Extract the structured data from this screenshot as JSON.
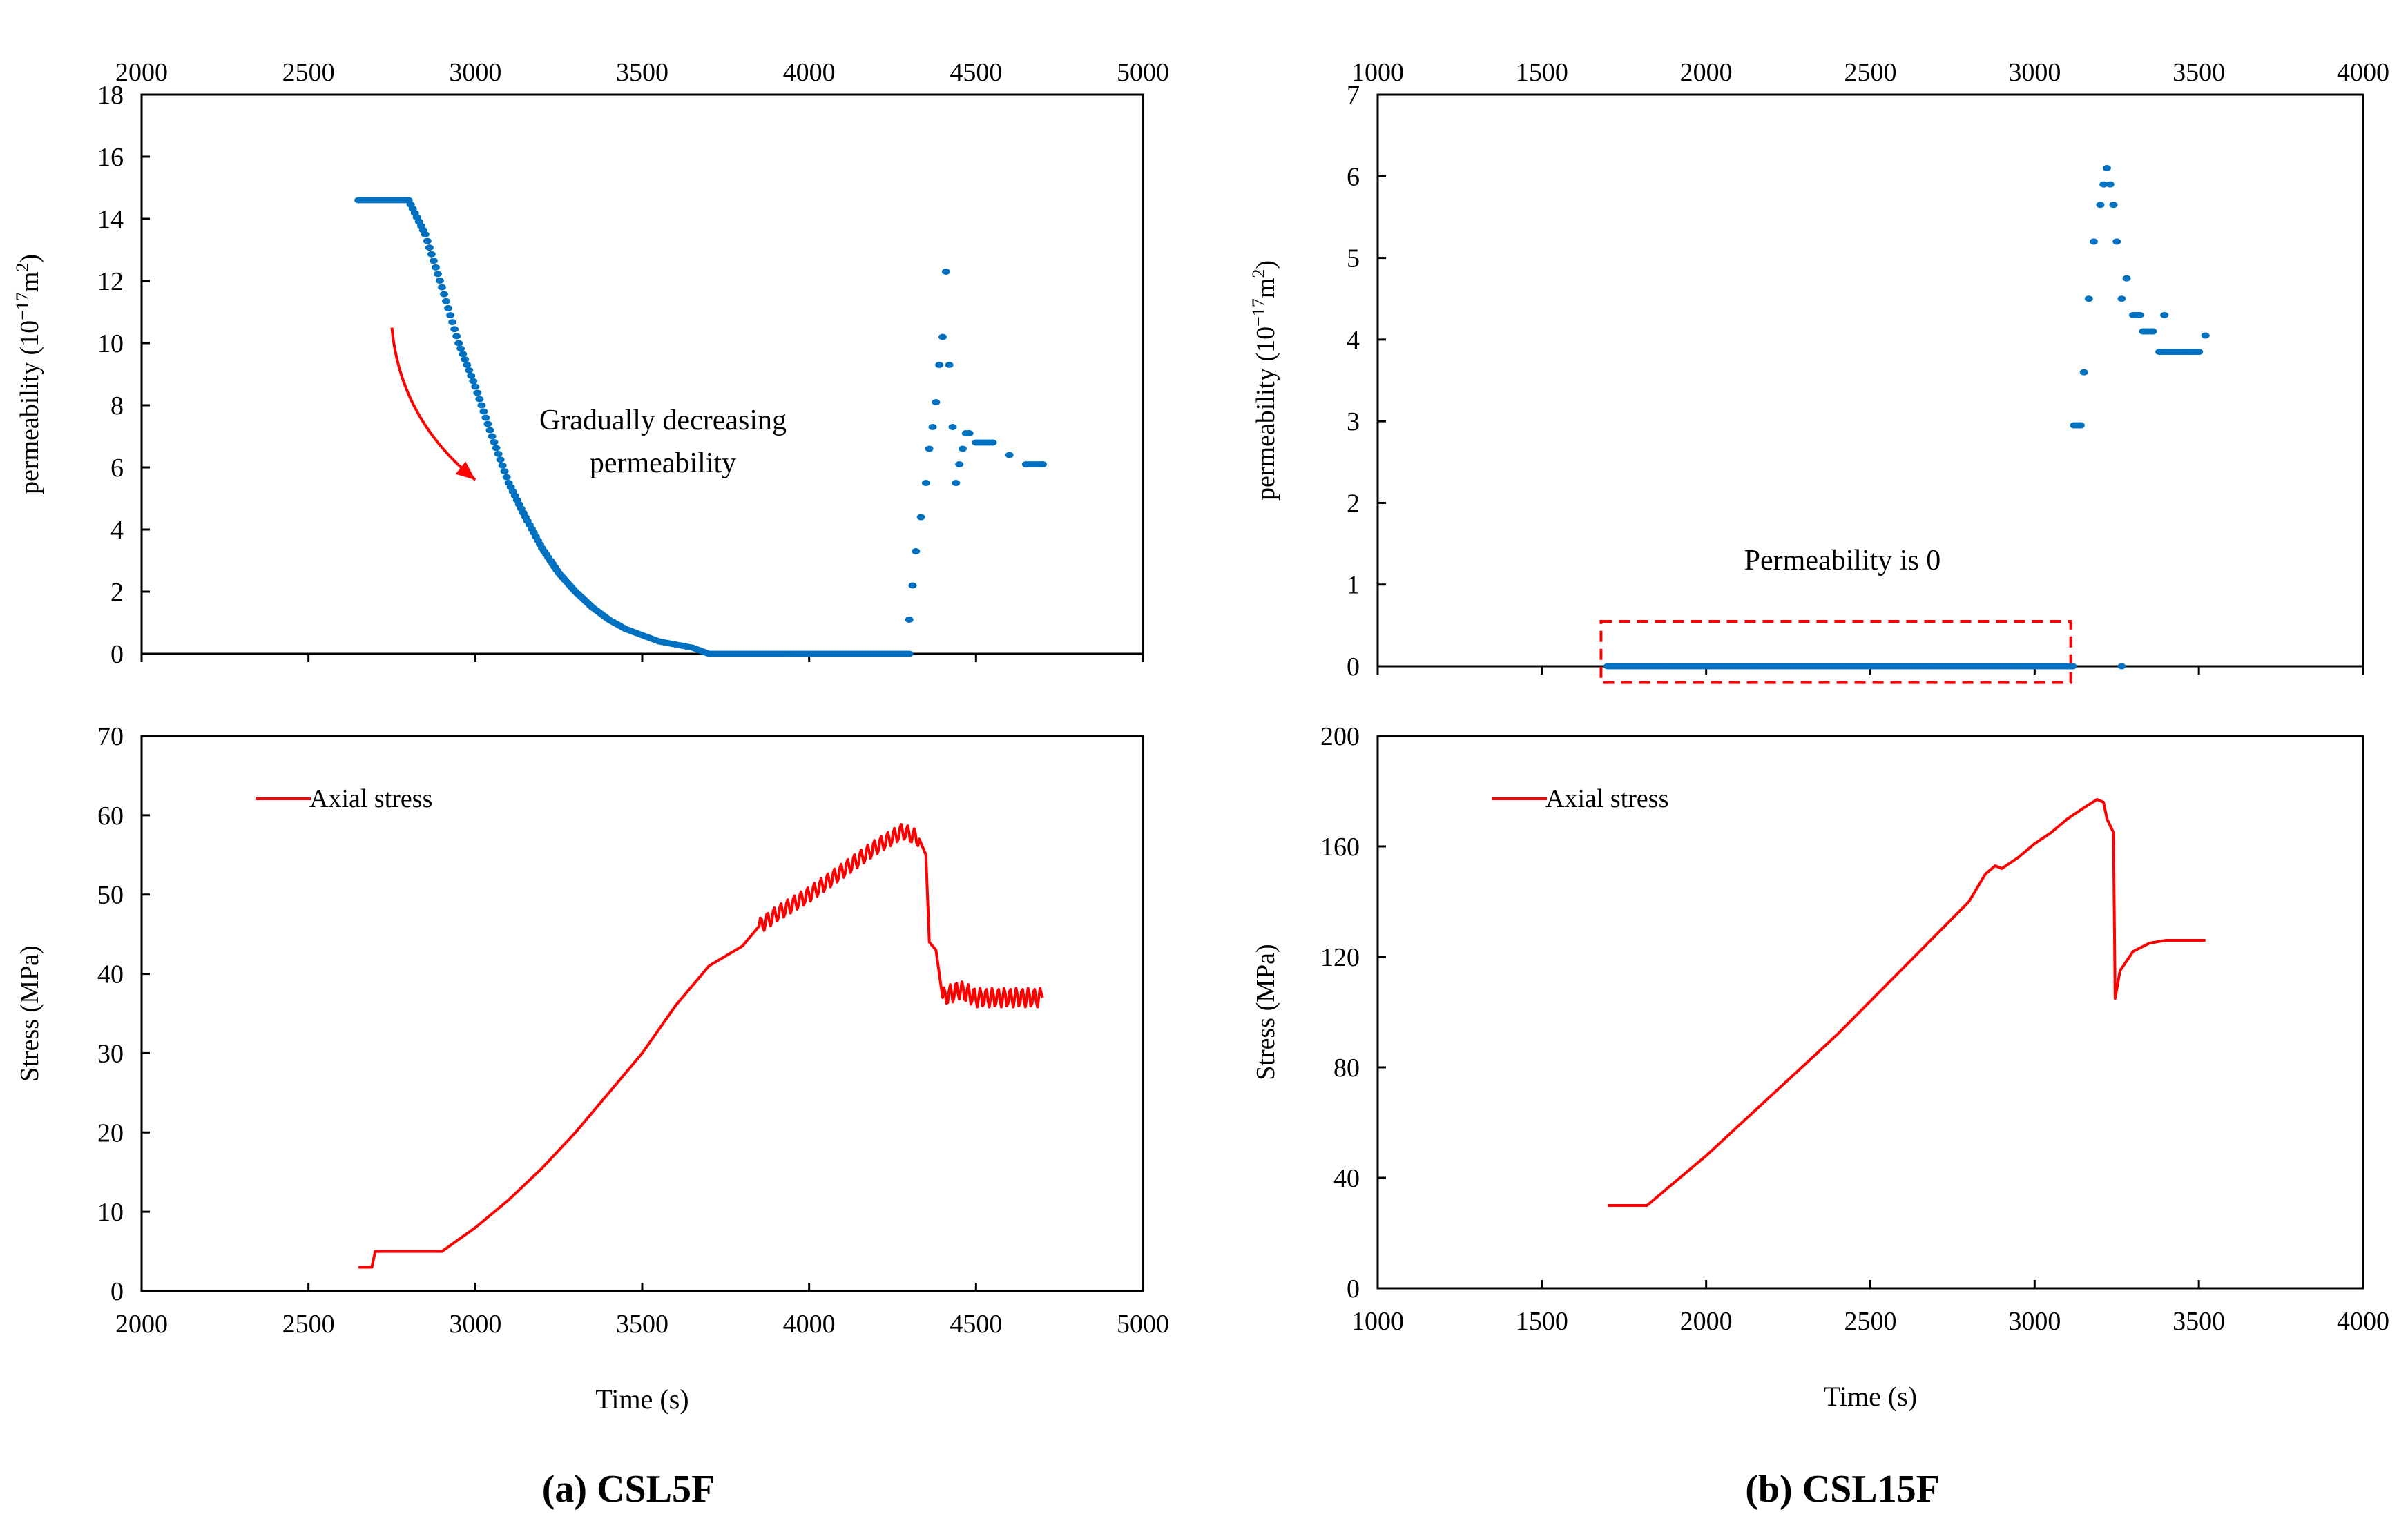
{
  "chart_data": [
    {
      "id": "a_perm",
      "type": "scatter",
      "panel": "(a) CSL5F",
      "ylabel_pre": "permeability (10",
      "ylabel_exp": "−17",
      "ylabel_post": "m",
      "ylabel_sq": "2",
      "ylabel_end": ")",
      "xlim": [
        2000,
        5000
      ],
      "ylim": [
        0,
        18
      ],
      "xticks": [
        "2000",
        "2500",
        "3000",
        "3500",
        "4000",
        "4500",
        "5000"
      ],
      "yticks": [
        "0",
        "2",
        "4",
        "6",
        "8",
        "10",
        "12",
        "14",
        "16",
        "18"
      ],
      "x_axis_position": "top",
      "annotation_lines": [
        "Gradually  decreasing",
        "permeability"
      ],
      "arrow": {
        "from": [
          2750,
          10.5
        ],
        "to": [
          3000,
          5.6
        ],
        "color": "#ff0000"
      },
      "color": "#0070c0",
      "segments": [
        {
          "kind": "plateau",
          "x0": 2650,
          "x1": 2800,
          "y": 14.6
        },
        {
          "kind": "decay",
          "points": [
            [
              2800,
              14.6
            ],
            [
              2850,
              13.5
            ],
            [
              2900,
              11.8
            ],
            [
              2950,
              10.0
            ],
            [
              3000,
              8.6
            ],
            [
              3050,
              7.0
            ],
            [
              3100,
              5.5
            ],
            [
              3150,
              4.4
            ],
            [
              3200,
              3.4
            ],
            [
              3250,
              2.6
            ],
            [
              3300,
              2.0
            ],
            [
              3350,
              1.5
            ],
            [
              3400,
              1.1
            ],
            [
              3450,
              0.8
            ],
            [
              3500,
              0.6
            ],
            [
              3550,
              0.4
            ],
            [
              3600,
              0.3
            ],
            [
              3650,
              0.2
            ],
            [
              3700,
              0.0
            ]
          ]
        },
        {
          "kind": "zero",
          "x0": 3700,
          "x1": 4300,
          "y": 0
        },
        {
          "kind": "peak",
          "points": [
            [
              4300,
              1.1
            ],
            [
              4310,
              2.2
            ],
            [
              4320,
              3.3
            ],
            [
              4335,
              4.4
            ],
            [
              4350,
              5.5
            ],
            [
              4360,
              6.6
            ],
            [
              4370,
              7.3
            ],
            [
              4380,
              8.1
            ],
            [
              4390,
              9.3
            ],
            [
              4400,
              10.2
            ],
            [
              4410,
              12.3
            ],
            [
              4420,
              9.3
            ],
            [
              4430,
              7.3
            ],
            [
              4440,
              5.5
            ],
            [
              4450,
              6.1
            ],
            [
              4460,
              6.6
            ],
            [
              4470,
              7.1
            ],
            [
              4480,
              7.1
            ],
            [
              4500,
              6.8
            ],
            [
              4550,
              6.8
            ],
            [
              4600,
              6.4
            ],
            [
              4650,
              6.1
            ],
            [
              4700,
              6.1
            ]
          ]
        }
      ]
    },
    {
      "id": "a_stress",
      "type": "line",
      "panel": "(a) CSL5F",
      "xlabel": "Time (s)",
      "ylabel": "Stress (MPa)",
      "xlim": [
        2000,
        5000
      ],
      "ylim": [
        0,
        70
      ],
      "xticks": [
        "2000",
        "2500",
        "3000",
        "3500",
        "4000",
        "4500",
        "5000"
      ],
      "yticks": [
        "0",
        "10",
        "20",
        "30",
        "40",
        "50",
        "60",
        "70"
      ],
      "legend": "Axial stress",
      "legend_position": "top-left",
      "color": "#ff0000",
      "series": [
        {
          "name": "Axial stress",
          "points": [
            [
              2650,
              3
            ],
            [
              2690,
              3
            ],
            [
              2700,
              5
            ],
            [
              2750,
              5
            ],
            [
              2800,
              5
            ],
            [
              2900,
              5
            ],
            [
              3000,
              8
            ],
            [
              3100,
              11.5
            ],
            [
              3200,
              15.5
            ],
            [
              3300,
              20
            ],
            [
              3400,
              25
            ],
            [
              3500,
              30
            ],
            [
              3600,
              36
            ],
            [
              3700,
              41
            ],
            [
              3800,
              43.5
            ],
            [
              3850,
              46
            ],
            [
              3900,
              47.5
            ],
            [
              4000,
              50
            ],
            [
              4100,
              53
            ],
            [
              4200,
              56
            ],
            [
              4280,
              58
            ],
            [
              4330,
              57
            ],
            [
              4350,
              55
            ],
            [
              4360,
              44
            ],
            [
              4380,
              43
            ],
            [
              4400,
              37
            ],
            [
              4450,
              38
            ],
            [
              4500,
              37
            ],
            [
              4600,
              37
            ],
            [
              4700,
              37
            ]
          ],
          "oscillate": {
            "from": 3850,
            "to": 4330,
            "amp": 1.0,
            "period": 20,
            "after_from": 4400,
            "after_to": 4700,
            "after_amp": 1.2,
            "after_period": 18
          }
        }
      ]
    },
    {
      "id": "b_perm",
      "type": "scatter",
      "panel": "(b) CSL15F",
      "ylabel_pre": "permeability (10",
      "ylabel_exp": "−17",
      "ylabel_post": "m",
      "ylabel_sq": "2",
      "ylabel_end": ")",
      "xlim": [
        1000,
        4000
      ],
      "ylim": [
        0,
        7
      ],
      "xticks": [
        "1000",
        "1500",
        "2000",
        "2500",
        "3000",
        "3500",
        "4000"
      ],
      "yticks": [
        "0",
        "1",
        "2",
        "3",
        "4",
        "5",
        "6",
        "7"
      ],
      "x_axis_position": "top",
      "annotation_lines": [
        "Permeability  is 0"
      ],
      "box": {
        "x0": 1680,
        "x1": 3110,
        "y0": -0.2,
        "y1": 0.55,
        "color": "#ff0000"
      },
      "color": "#0070c0",
      "segments": [
        {
          "kind": "zero",
          "x0": 1700,
          "x1": 3120,
          "y": 0
        },
        {
          "kind": "peak",
          "points": [
            [
              3120,
              2.95
            ],
            [
              3140,
              2.95
            ],
            [
              3150,
              3.6
            ],
            [
              3165,
              4.5
            ],
            [
              3180,
              5.2
            ],
            [
              3200,
              5.65
            ],
            [
              3210,
              5.9
            ],
            [
              3220,
              6.1
            ],
            [
              3230,
              5.9
            ],
            [
              3240,
              5.65
            ],
            [
              3250,
              5.2
            ],
            [
              3265,
              4.5
            ],
            [
              3280,
              4.75
            ],
            [
              3300,
              4.3
            ],
            [
              3320,
              4.3
            ],
            [
              3330,
              4.1
            ],
            [
              3360,
              4.1
            ],
            [
              3380,
              3.85
            ],
            [
              3500,
              3.85
            ],
            [
              3520,
              4.05
            ]
          ]
        },
        {
          "kind": "points",
          "points": [
            [
              3265,
              0.0
            ],
            [
              3395,
              4.3
            ]
          ]
        }
      ]
    },
    {
      "id": "b_stress",
      "type": "line",
      "panel": "(b) CSL15F",
      "xlabel": "Time (s)",
      "ylabel": "Stress (MPa)",
      "xlim": [
        1000,
        4000
      ],
      "ylim": [
        0,
        200
      ],
      "xticks": [
        "1000",
        "1500",
        "2000",
        "2500",
        "3000",
        "3500",
        "4000"
      ],
      "yticks": [
        "0",
        "40",
        "80",
        "120",
        "160",
        "200"
      ],
      "legend": "Axial stress",
      "legend_position": "top-left",
      "color": "#ff0000",
      "series": [
        {
          "name": "Axial stress",
          "points": [
            [
              1700,
              30
            ],
            [
              1820,
              30
            ],
            [
              1900,
              38
            ],
            [
              2000,
              48
            ],
            [
              2100,
              59
            ],
            [
              2200,
              70
            ],
            [
              2300,
              81
            ],
            [
              2400,
              92
            ],
            [
              2500,
              104
            ],
            [
              2600,
              116
            ],
            [
              2700,
              128
            ],
            [
              2800,
              140
            ],
            [
              2850,
              150
            ],
            [
              2880,
              153
            ],
            [
              2900,
              152
            ],
            [
              2950,
              156
            ],
            [
              3000,
              161
            ],
            [
              3050,
              165
            ],
            [
              3100,
              170
            ],
            [
              3150,
              174
            ],
            [
              3190,
              177
            ],
            [
              3210,
              176
            ],
            [
              3220,
              170
            ],
            [
              3240,
              165
            ],
            [
              3245,
              105
            ],
            [
              3260,
              115
            ],
            [
              3300,
              122
            ],
            [
              3350,
              125
            ],
            [
              3400,
              126
            ],
            [
              3520,
              126
            ]
          ]
        }
      ]
    }
  ],
  "captions": {
    "a": "(a) CSL5F",
    "b": "(b) CSL15F"
  }
}
